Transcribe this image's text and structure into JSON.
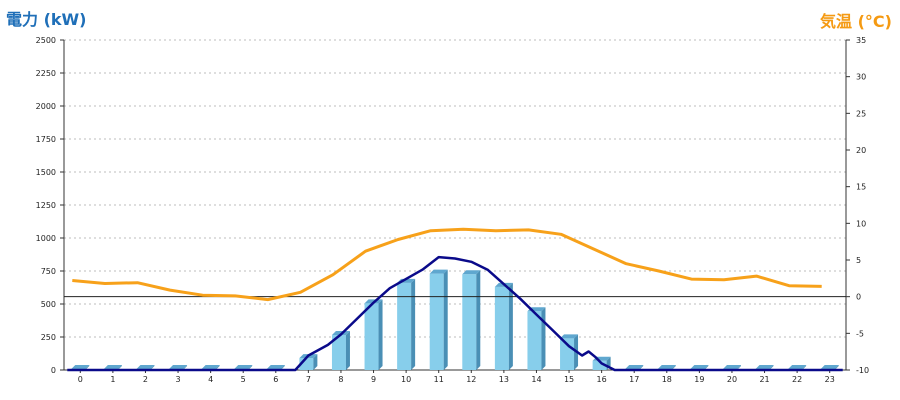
{
  "chart_data": {
    "type": "bar",
    "left_axis_label": "電力 (kW)",
    "right_axis_label": "気温 (°C)",
    "categories": [
      "0",
      "1",
      "2",
      "3",
      "4",
      "5",
      "6",
      "7",
      "8",
      "9",
      "10",
      "11",
      "12",
      "13",
      "14",
      "15",
      "16",
      "17",
      "18",
      "19",
      "20",
      "21",
      "22",
      "23"
    ],
    "left_ylim": [
      0,
      2500
    ],
    "left_ticks": [
      "0",
      "250",
      "500",
      "750",
      "1000",
      "1250",
      "1500",
      "1750",
      "2000",
      "2250",
      "2500"
    ],
    "right_ylim": [
      -10,
      35
    ],
    "right_ticks": [
      "-10",
      "-5",
      "0",
      "5",
      "10",
      "15",
      "20",
      "25",
      "30",
      "35"
    ],
    "grid": true,
    "series": [
      {
        "kind": "bar",
        "axis": "left",
        "color": "#87ceeb",
        "values": [
          8,
          8,
          8,
          8,
          8,
          8,
          8,
          90,
          265,
          505,
          660,
          730,
          725,
          630,
          445,
          240,
          70,
          8,
          8,
          8,
          8,
          8,
          8,
          8
        ]
      },
      {
        "kind": "line",
        "axis": "left",
        "color": "#0a0a8a",
        "x": [
          -0.4,
          0,
          1,
          2,
          3,
          4,
          5,
          6,
          6.6,
          7,
          7.6,
          8,
          8.5,
          9,
          9.5,
          10,
          10.5,
          11,
          11.5,
          12,
          12.5,
          13,
          13.5,
          14,
          14.5,
          15,
          15.4,
          15.6,
          15.8,
          16,
          16.4,
          17,
          18,
          19,
          20,
          21,
          22,
          23,
          23.4
        ],
        "values": [
          0,
          0,
          0,
          0,
          0,
          0,
          0,
          0,
          0,
          110,
          190,
          270,
          390,
          510,
          620,
          690,
          760,
          855,
          845,
          820,
          760,
          650,
          540,
          420,
          300,
          180,
          110,
          140,
          100,
          50,
          0,
          0,
          0,
          0,
          0,
          0,
          0,
          0,
          0
        ]
      },
      {
        "kind": "line",
        "axis": "right",
        "color": "#f7a11a",
        "values": [
          2.2,
          1.8,
          1.9,
          0.9,
          0.2,
          0.1,
          -0.4,
          0.6,
          3.0,
          6.2,
          7.8,
          9.0,
          9.2,
          9.0,
          9.1,
          8.5,
          6.5,
          4.5,
          3.5,
          2.4,
          2.3,
          2.8,
          1.5,
          1.4
        ]
      }
    ]
  }
}
